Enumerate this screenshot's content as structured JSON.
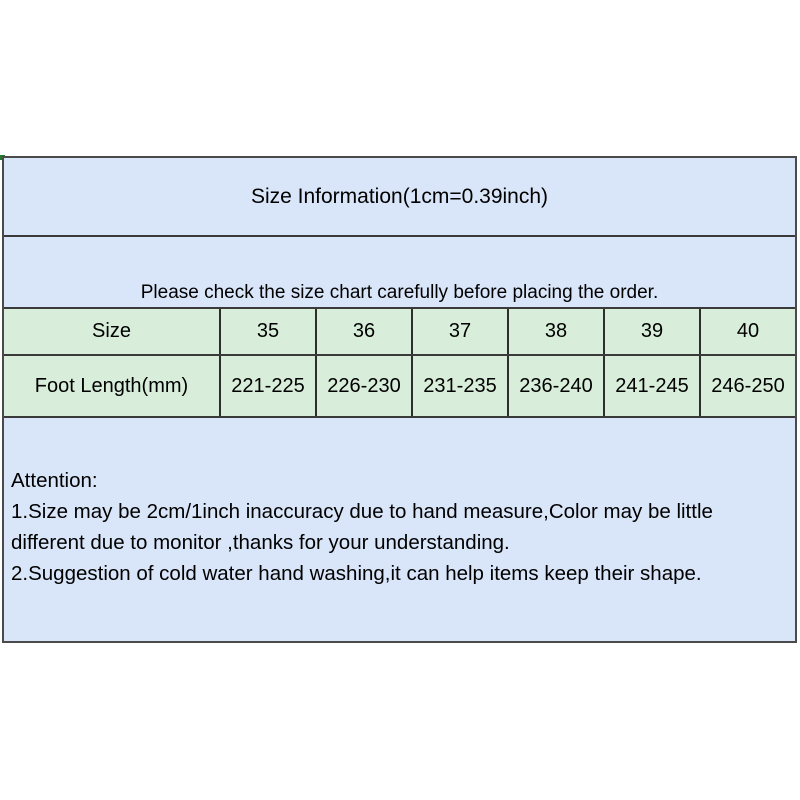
{
  "table": {
    "title": "Size Information(1cm=0.39inch)",
    "notice": "Please check the size chart carefully before placing the order.",
    "size_row": {
      "header": "Size",
      "values": [
        "35",
        "36",
        "37",
        "38",
        "39",
        "40"
      ]
    },
    "length_row": {
      "header": "Foot Length(mm)",
      "values": [
        "221-225",
        "226-230",
        "231-235",
        "236-240",
        "241-245",
        "246-250"
      ]
    },
    "attention": {
      "heading": "Attention:",
      "lines": [
        "1.Size may be 2cm/1inch inaccuracy due to hand measure,Color may be little",
        "different due to monitor ,thanks for your understanding.",
        "2.Suggestion of cold water hand washing,it can help items keep their shape."
      ]
    },
    "colors": {
      "panel_blue": "#d9e5f8",
      "panel_green": "#d8eeda",
      "border_outer": "#4a4a4a",
      "border_inner": "#2e2e2e",
      "text": "#000000"
    }
  },
  "chart_data": {
    "type": "table",
    "title": "Size Information(1cm=0.39inch)",
    "columns": [
      "Size",
      "35",
      "36",
      "37",
      "38",
      "39",
      "40"
    ],
    "rows": [
      [
        "Foot Length(mm)",
        "221-225",
        "226-230",
        "231-235",
        "236-240",
        "241-245",
        "246-250"
      ]
    ]
  }
}
